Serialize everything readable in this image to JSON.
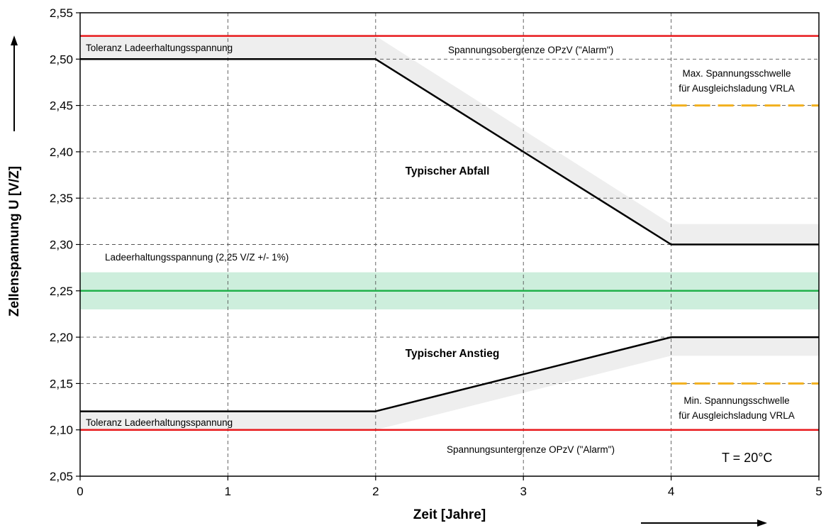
{
  "chart_data": {
    "type": "line",
    "xlabel": "Zeit [Jahre]",
    "ylabel": "Zellenspannung U [V/Z]",
    "xlim": [
      0,
      5
    ],
    "ylim": [
      2.05,
      2.55
    ],
    "x_ticks": [
      "0",
      "1",
      "2",
      "3",
      "4",
      "5"
    ],
    "y_ticks": [
      "2,05",
      "2,10",
      "2,15",
      "2,20",
      "2,25",
      "2,30",
      "2,35",
      "2,40",
      "2,45",
      "2,50",
      "2,55"
    ],
    "y_tick_values": [
      2.05,
      2.1,
      2.15,
      2.2,
      2.25,
      2.3,
      2.35,
      2.4,
      2.45,
      2.5,
      2.55
    ],
    "grid": true,
    "series": [
      {
        "name": "Typischer Abfall",
        "color": "#000000",
        "x": [
          0,
          2,
          4,
          5
        ],
        "y": [
          2.5,
          2.5,
          2.3,
          2.3
        ]
      },
      {
        "name": "Typischer Anstieg",
        "color": "#000000",
        "x": [
          0,
          2,
          4,
          5
        ],
        "y": [
          2.12,
          2.12,
          2.2,
          2.2
        ]
      }
    ],
    "reference_lines": [
      {
        "name": "Spannungsobergrenze OPzV (\"Alarm\")",
        "y": 2.525,
        "color": "#e8191c",
        "style": "solid"
      },
      {
        "name": "Spannungsuntergrenze OPzV (\"Alarm\")",
        "y": 2.1,
        "color": "#e8191c",
        "style": "solid"
      },
      {
        "name": "Ladeerhaltungsspannung (2,25 V/Z +/- 1%)",
        "y": 2.25,
        "color": "#22b14c",
        "style": "solid"
      },
      {
        "name": "Max. Spannungsschwelle für Ausgleichsladung VRLA",
        "y": 2.45,
        "x": [
          4,
          5
        ],
        "color": "#f2b01e",
        "style": "dashed"
      },
      {
        "name": "Min. Spannungsschwelle für Ausgleichsladung VRLA",
        "y": 2.15,
        "x": [
          4,
          5
        ],
        "color": "#f2b01e",
        "style": "dashed"
      }
    ],
    "bands": [
      {
        "name": "Ladeerhaltungsspannung",
        "y_from": 2.23,
        "y_to": 2.27,
        "color": "#cdeedc"
      },
      {
        "name": "Toleranz Ladeerhaltungsspannung (oben)",
        "color": "#eeeeee",
        "upper": {
          "x": [
            0,
            2,
            4,
            5
          ],
          "y": [
            2.525,
            2.525,
            2.322,
            2.322
          ]
        },
        "lower": {
          "x": [
            0,
            2,
            4,
            5
          ],
          "y": [
            2.5,
            2.5,
            2.3,
            2.3
          ]
        }
      },
      {
        "name": "Toleranz Ladeerhaltungsspannung (unten)",
        "color": "#eeeeee",
        "upper": {
          "x": [
            0,
            2,
            4,
            5
          ],
          "y": [
            2.12,
            2.12,
            2.2,
            2.2
          ]
        },
        "lower": {
          "x": [
            0,
            2,
            4,
            5
          ],
          "y": [
            2.1,
            2.1,
            2.18,
            2.18
          ]
        }
      }
    ],
    "annotations": {
      "toleranz_top": "Toleranz Ladeerhaltungsspannung",
      "toleranz_bottom": "Toleranz Ladeerhaltungsspannung",
      "obergrenze": "Spannungsobergrenze OPzV (\"Alarm\")",
      "untergrenze": "Spannungsuntergrenze OPzV (\"Alarm\")",
      "ladeerhaltung": "Ladeerhaltungsspannung (2,25 V/Z +/- 1%)",
      "abfall": "Typischer Abfall",
      "anstieg": "Typischer Anstieg",
      "max_line1": "Max. Spannungsschwelle",
      "max_line2": "für Ausgleichsladung VRLA",
      "min_line1": "Min. Spannungsschwelle",
      "min_line2": "für Ausgleichsladung VRLA",
      "temperature": "T = 20°C"
    }
  }
}
